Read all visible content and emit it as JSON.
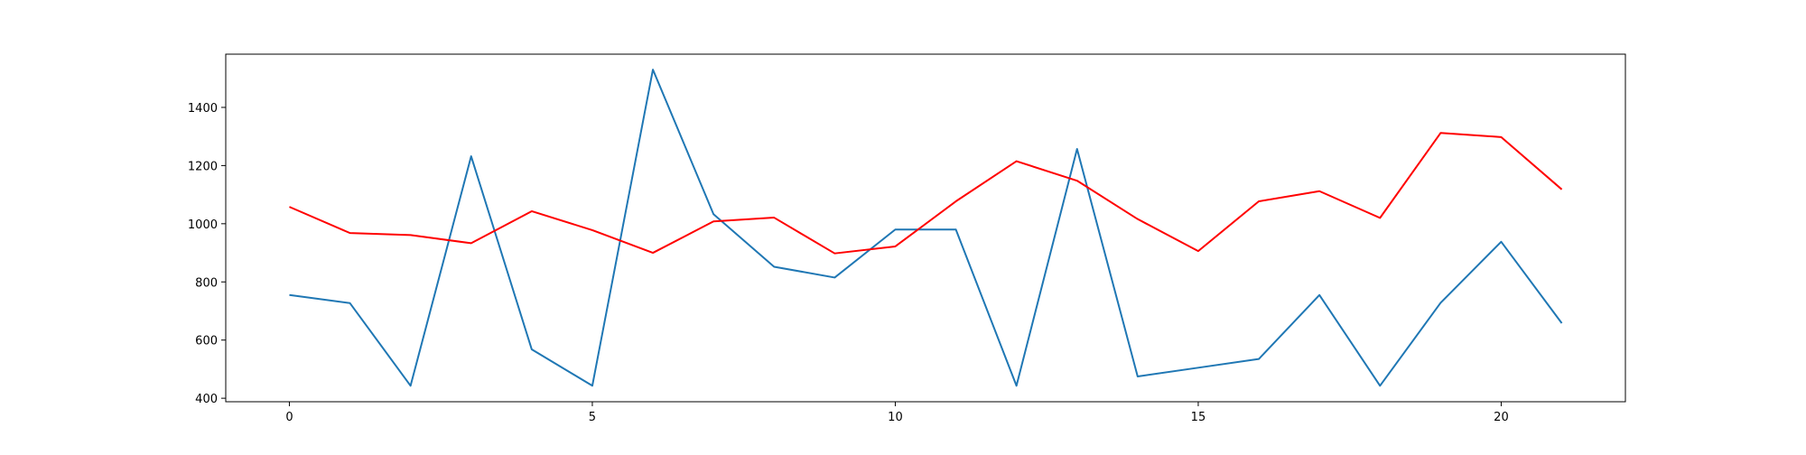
{
  "chart_data": {
    "type": "line",
    "title": "",
    "xlabel": "",
    "ylabel": "",
    "x": [
      0,
      1,
      2,
      3,
      4,
      5,
      6,
      7,
      8,
      9,
      10,
      11,
      12,
      13,
      14,
      15,
      16,
      17,
      18,
      19,
      20,
      21
    ],
    "xlim": [
      -1.05,
      22.05
    ],
    "ylim": [
      388,
      1583
    ],
    "xticks": [
      0,
      5,
      10,
      15,
      20
    ],
    "yticks": [
      400,
      600,
      800,
      1000,
      1200,
      1400
    ],
    "grid": false,
    "legend": "none",
    "series": [
      {
        "color": "#1f77b4",
        "values": [
          755,
          727,
          443,
          1232,
          568,
          443,
          1530,
          1033,
          852,
          815,
          980,
          980,
          443,
          1257,
          475,
          505,
          535,
          755,
          443,
          728,
          938,
          658
        ]
      },
      {
        "color": "#ff0000",
        "values": [
          1058,
          968,
          961,
          933,
          1043,
          978,
          900,
          1008,
          1021,
          898,
          922,
          1077,
          1215,
          1148,
          1016,
          906,
          1077,
          1112,
          1020,
          1312,
          1298,
          1118
        ]
      }
    ]
  }
}
